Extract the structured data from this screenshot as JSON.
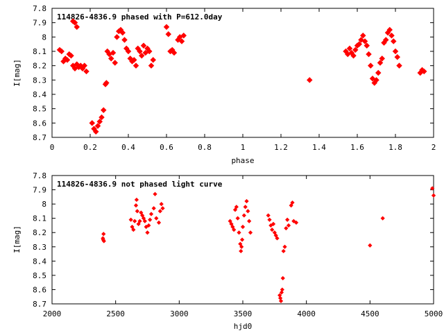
{
  "chart_data": [
    {
      "type": "scatter",
      "title": "114826-4836.9 phased with P=612.0day",
      "xlabel": "phase",
      "ylabel": "I[mag]",
      "xlim": [
        0,
        2
      ],
      "ylim": [
        8.7,
        7.8
      ],
      "y_inverted": true,
      "grid": false,
      "x_ticks": [
        "0",
        "0.2",
        "0.4",
        "0.6",
        "0.8",
        "1",
        "1.2",
        "1.4",
        "1.6",
        "1.8",
        "2"
      ],
      "y_ticks": [
        "7.8",
        "7.9",
        "8",
        "8.1",
        "8.2",
        "8.3",
        "8.4",
        "8.5",
        "8.6",
        "8.7"
      ],
      "marker_color": "#ff0000",
      "series": [
        {
          "x": [
            0.04,
            0.05,
            0.06,
            0.07,
            0.08,
            0.09,
            0.1,
            0.11,
            0.12,
            0.13,
            0.14,
            0.15,
            0.16,
            0.17,
            0.18,
            0.11,
            0.12,
            0.13,
            0.21,
            0.22,
            0.23,
            0.24,
            0.25,
            0.26,
            0.27,
            0.28,
            0.285,
            0.29,
            0.3,
            0.31,
            0.32,
            0.33,
            0.34,
            0.35,
            0.36,
            0.37,
            0.38,
            0.39,
            0.4,
            0.41,
            0.42,
            0.43,
            0.44,
            0.45,
            0.46,
            0.47,
            0.48,
            0.49,
            0.5,
            0.51,
            0.52,
            0.53,
            0.6,
            0.61,
            0.62,
            0.63,
            0.64,
            0.66,
            0.67,
            0.68,
            0.69,
            1.35,
            1.54,
            1.55,
            1.56,
            1.57,
            1.58,
            1.59,
            1.6,
            1.61,
            1.62,
            1.63,
            1.64,
            1.65,
            1.66,
            1.67,
            1.68,
            1.69,
            1.7,
            1.71,
            1.72,
            1.73,
            1.74,
            1.75,
            1.76,
            1.77,
            1.78,
            1.79,
            1.8,
            1.81,
            1.82,
            1.93,
            1.94,
            1.95
          ],
          "y": [
            8.09,
            8.1,
            8.17,
            8.15,
            8.16,
            8.12,
            8.13,
            8.2,
            8.22,
            8.19,
            8.21,
            8.2,
            8.22,
            8.2,
            8.24,
            7.89,
            7.9,
            7.93,
            8.6,
            8.64,
            8.66,
            8.62,
            8.59,
            8.56,
            8.51,
            8.33,
            8.32,
            8.1,
            8.12,
            8.15,
            8.11,
            8.18,
            8.0,
            7.96,
            7.95,
            7.97,
            8.02,
            8.08,
            8.1,
            8.15,
            8.17,
            8.16,
            8.2,
            8.08,
            8.1,
            8.13,
            8.06,
            8.11,
            8.08,
            8.1,
            8.2,
            8.16,
            7.93,
            7.98,
            8.1,
            8.09,
            8.11,
            8.02,
            8.0,
            8.03,
            7.99,
            8.3,
            8.1,
            8.12,
            8.08,
            8.11,
            8.13,
            8.09,
            8.06,
            8.05,
            8.02,
            7.99,
            8.03,
            8.06,
            8.12,
            8.2,
            8.29,
            8.32,
            8.3,
            8.25,
            8.18,
            8.15,
            8.04,
            8.02,
            7.97,
            7.95,
            7.99,
            8.03,
            8.1,
            8.14,
            8.2,
            8.25,
            8.23,
            8.24
          ]
        }
      ]
    },
    {
      "type": "scatter",
      "title": "114826-4836.9 not phased light curve",
      "xlabel": "hjd0",
      "ylabel": "I[mag]",
      "xlim": [
        2000,
        5000
      ],
      "ylim": [
        8.7,
        7.8
      ],
      "y_inverted": true,
      "grid": false,
      "x_ticks": [
        "2000",
        "2500",
        "3000",
        "3500",
        "4000",
        "4500",
        "5000"
      ],
      "y_ticks": [
        "7.8",
        "7.9",
        "8",
        "8.1",
        "8.2",
        "8.3",
        "8.4",
        "8.5",
        "8.6",
        "8.7"
      ],
      "marker_color": "#ff0000",
      "series": [
        {
          "x": [
            2400,
            2402,
            2405,
            2408,
            2620,
            2630,
            2640,
            2650,
            2660,
            2665,
            2670,
            2680,
            2690,
            2700,
            2710,
            2720,
            2730,
            2740,
            2750,
            2760,
            2770,
            2780,
            2800,
            2810,
            2820,
            2840,
            2850,
            2860,
            2870,
            3400,
            3410,
            3420,
            3430,
            3440,
            3450,
            3460,
            3470,
            3480,
            3485,
            3490,
            3495,
            3500,
            3510,
            3520,
            3530,
            3540,
            3550,
            3560,
            3700,
            3710,
            3720,
            3730,
            3740,
            3750,
            3760,
            3770,
            3790,
            3795,
            3800,
            3805,
            3810,
            3815,
            3820,
            3830,
            3840,
            3850,
            3860,
            3880,
            3890,
            3900,
            3920,
            4500,
            4600,
            4990,
            5000
          ],
          "y": [
            8.24,
            8.25,
            8.21,
            8.26,
            8.11,
            8.16,
            8.18,
            8.12,
            8.01,
            7.97,
            8.05,
            8.14,
            8.12,
            8.06,
            8.08,
            8.1,
            8.12,
            8.16,
            8.2,
            8.15,
            8.11,
            8.07,
            8.03,
            7.93,
            8.1,
            8.13,
            8.05,
            8.0,
            8.03,
            8.12,
            8.14,
            8.16,
            8.18,
            8.04,
            8.02,
            8.1,
            8.2,
            8.28,
            8.33,
            8.3,
            8.25,
            8.16,
            8.08,
            8.02,
            7.98,
            8.05,
            8.12,
            8.2,
            8.08,
            8.11,
            8.15,
            8.18,
            8.14,
            8.2,
            8.22,
            8.24,
            8.64,
            8.66,
            8.68,
            8.62,
            8.6,
            8.52,
            8.33,
            8.3,
            8.17,
            8.11,
            8.15,
            8.01,
            7.99,
            8.12,
            8.13,
            8.29,
            8.1,
            7.89,
            7.94
          ]
        }
      ]
    }
  ]
}
